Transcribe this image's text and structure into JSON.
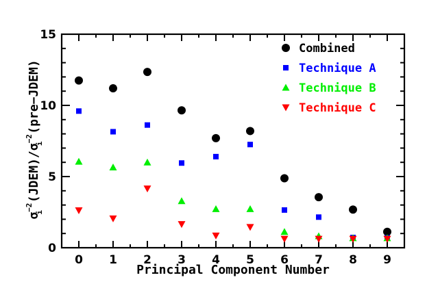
{
  "chart_data": {
    "type": "scatter",
    "xlabel": "Principal Component Number",
    "ylabel": {
      "sigma": "σ",
      "sub": "i",
      "sup": "−2",
      "mid": " (JDEM)/",
      "end": " (pre−JDEM)"
    },
    "xlim": [
      -0.5,
      9.5
    ],
    "ylim": [
      0,
      15
    ],
    "xticks": [
      "0",
      "1",
      "2",
      "3",
      "4",
      "5",
      "6",
      "7",
      "8",
      "9"
    ],
    "yticks": [
      "0",
      "5",
      "10",
      "15"
    ],
    "legend_position": "top-right",
    "series": [
      {
        "name": "Combined",
        "marker": "circle",
        "color": "#000000",
        "x": [
          0,
          1,
          2,
          3,
          4,
          5,
          6,
          7,
          8,
          9
        ],
        "y": [
          11.75,
          11.2,
          12.35,
          9.65,
          7.7,
          8.2,
          4.88,
          3.55,
          2.68,
          1.12
        ]
      },
      {
        "name": "Technique A",
        "marker": "square",
        "color": "#0000ff",
        "x": [
          0,
          1,
          2,
          3,
          4,
          5,
          6,
          7,
          8,
          9
        ],
        "y": [
          9.6,
          8.15,
          8.62,
          5.95,
          6.4,
          7.25,
          2.65,
          2.15,
          0.72,
          0.7
        ]
      },
      {
        "name": "Technique B",
        "marker": "triangle-up",
        "color": "#00ee00",
        "x": [
          0,
          1,
          2,
          3,
          4,
          5,
          6,
          7,
          8,
          9
        ],
        "y": [
          6.05,
          5.65,
          6.0,
          3.28,
          2.72,
          2.72,
          1.12,
          0.82,
          0.68,
          0.68
        ]
      },
      {
        "name": "Technique C",
        "marker": "triangle-down",
        "color": "#ff0000",
        "x": [
          0,
          1,
          2,
          3,
          4,
          5,
          6,
          7,
          8,
          9
        ],
        "y": [
          2.62,
          2.05,
          4.15,
          1.65,
          0.85,
          1.45,
          0.62,
          0.62,
          0.62,
          0.62
        ]
      }
    ]
  }
}
